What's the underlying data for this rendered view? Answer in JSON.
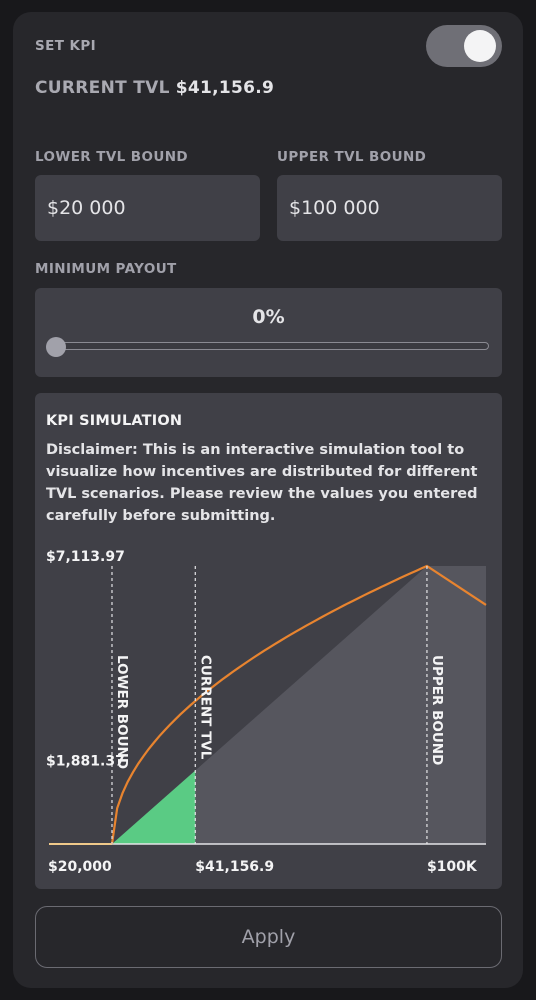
{
  "header": {
    "title": "SET KPI",
    "toggle_on": true,
    "current_tvl_label": "CURRENT TVL",
    "current_tvl_value": "$41,156.9"
  },
  "bounds": {
    "lower_label": "LOWER TVL BOUND",
    "lower_value": "$20 000",
    "upper_label": "UPPER TVL BOUND",
    "upper_value": "$100 000"
  },
  "payout": {
    "label": "MINIMUM PAYOUT",
    "value_text": "0%",
    "value": 0
  },
  "simulation": {
    "title": "KPI SIMULATION",
    "disclaimer": "Disclaimer: This is an interactive simulation tool to visualize how incentives are distributed for different TVL scenarios. Please review the values you entered carefully before submitting."
  },
  "chart_data": {
    "type": "line",
    "y_tick_labels": [
      "$7,113.97",
      "$1,881.37"
    ],
    "y_ticks": [
      7113.97,
      1881.37
    ],
    "x_tick_labels": [
      "$20,000",
      "$41,156.9",
      "$100K"
    ],
    "x_ticks": [
      20000,
      41156.9,
      100000
    ],
    "markers": [
      {
        "label": "LOWER BOUND",
        "x": 20000
      },
      {
        "label": "CURRENT TVL",
        "x": 41156.9
      },
      {
        "label": "UPPER BOUND",
        "x": 100000
      }
    ],
    "xlim": [
      4000,
      115000
    ],
    "ylim": [
      0,
      7113.97
    ],
    "colors": {
      "curve": "#e8842f",
      "pre_lower_line": "#f0c98a",
      "current_fill": "#5acb84",
      "payout_area": "#56565e",
      "bg_triangle": "#34343a"
    }
  },
  "apply": {
    "label": "Apply"
  }
}
